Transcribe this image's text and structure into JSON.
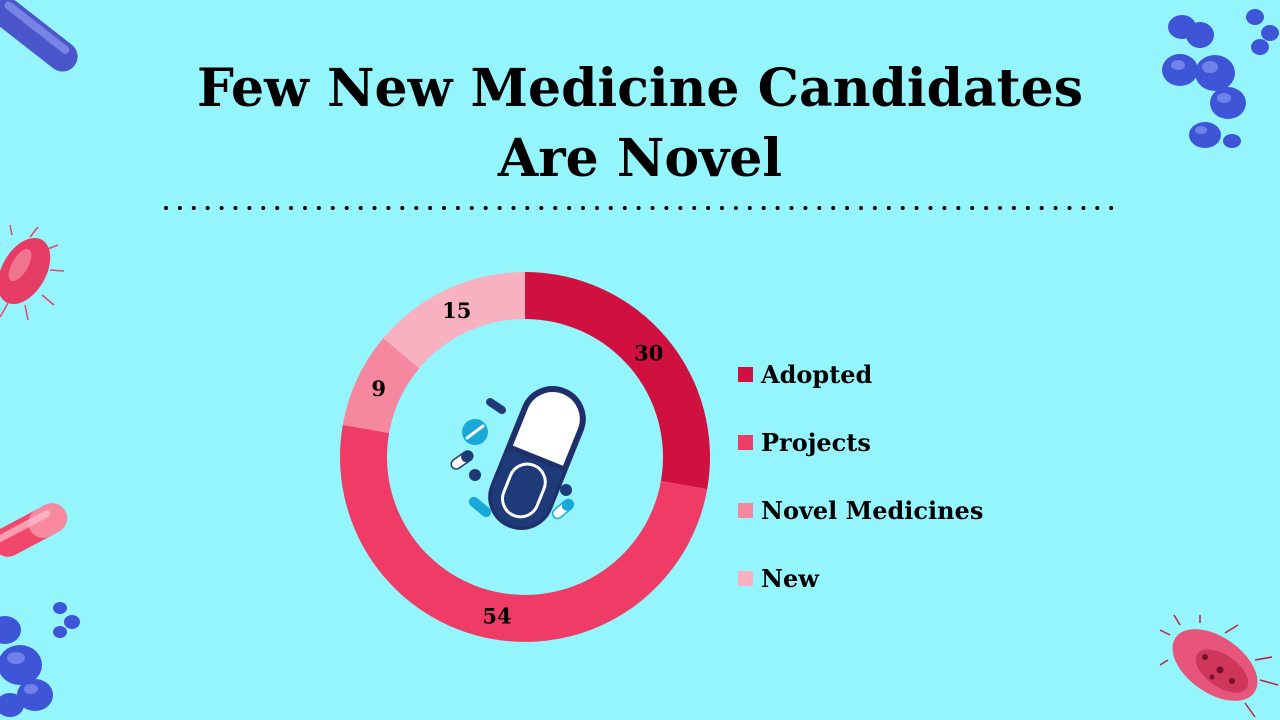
{
  "title_lines": [
    "Few New Medicine Candidates",
    "Are Novel"
  ],
  "chart_data": {
    "type": "pie",
    "variant": "donut",
    "categories": [
      "Adopted",
      "Projects",
      "Novel Medicines",
      "New"
    ],
    "values": [
      30,
      54,
      9,
      15
    ],
    "colors": [
      "#D0113F",
      "#EF3C66",
      "#F5879E",
      "#F8B1C0"
    ],
    "data_labels": [
      "30",
      "54",
      "9",
      "15"
    ],
    "legend_position": "right",
    "center_icon": "pill-capsule-icon"
  },
  "colors": {
    "background": "#95F5FD",
    "title": "#000000",
    "divider": "#000000"
  }
}
